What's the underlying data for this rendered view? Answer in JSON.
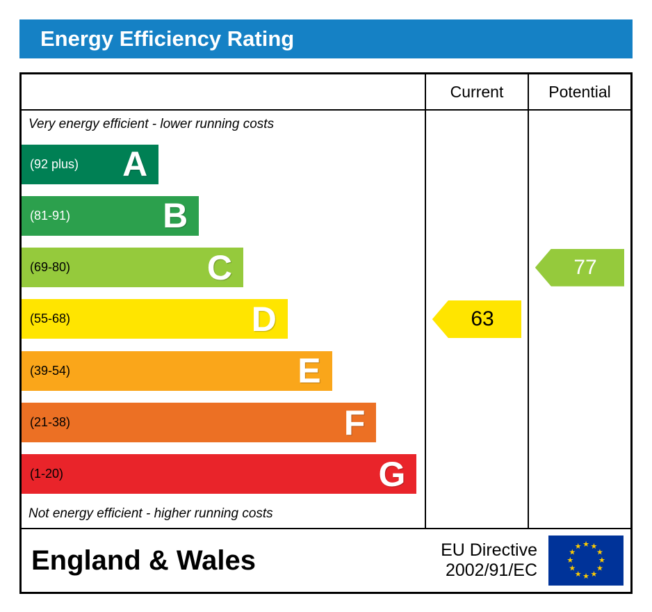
{
  "title": "Energy Efficiency Rating",
  "table": {
    "current_header": "Current",
    "potential_header": "Potential"
  },
  "chart_data": {
    "type": "bar",
    "title": "Energy Efficiency Rating",
    "ylim": [
      1,
      100
    ],
    "top_caption": "Very energy efficient - lower running costs",
    "bottom_caption": "Not energy efficient - higher running costs",
    "bands": [
      {
        "letter": "A",
        "range": "(92 plus)",
        "min": 92,
        "max": 100,
        "color": "#008054",
        "text_color": "#ffffff",
        "width_pct": 34
      },
      {
        "letter": "B",
        "range": "(81-91)",
        "min": 81,
        "max": 91,
        "color": "#2ca04d",
        "text_color": "#ffffff",
        "width_pct": 44
      },
      {
        "letter": "C",
        "range": "(69-80)",
        "min": 69,
        "max": 80,
        "color": "#95ca3c",
        "text_color": "#000000",
        "width_pct": 55
      },
      {
        "letter": "D",
        "range": "(55-68)",
        "min": 55,
        "max": 68,
        "color": "#ffe500",
        "text_color": "#000000",
        "width_pct": 66
      },
      {
        "letter": "E",
        "range": "(39-54)",
        "min": 39,
        "max": 54,
        "color": "#faa61a",
        "text_color": "#000000",
        "width_pct": 77
      },
      {
        "letter": "F",
        "range": "(21-38)",
        "min": 21,
        "max": 38,
        "color": "#ec7024",
        "text_color": "#000000",
        "width_pct": 88
      },
      {
        "letter": "G",
        "range": "(1-20)",
        "min": 1,
        "max": 20,
        "color": "#e9242a",
        "text_color": "#000000",
        "width_pct": 98
      }
    ],
    "current": {
      "value": 63,
      "band": "D",
      "color": "#ffe500",
      "text_color": "#000000"
    },
    "potential": {
      "value": 77,
      "band": "C",
      "color": "#95ca3c",
      "text_color": "#ffffff"
    }
  },
  "footer": {
    "region": "England & Wales",
    "directive_line1": "EU Directive",
    "directive_line2": "2002/91/EC",
    "flag": {
      "background": "#003399",
      "star_color": "#ffcc00"
    }
  },
  "colors": {
    "title_bar": "#1581c5",
    "border": "#000000"
  }
}
